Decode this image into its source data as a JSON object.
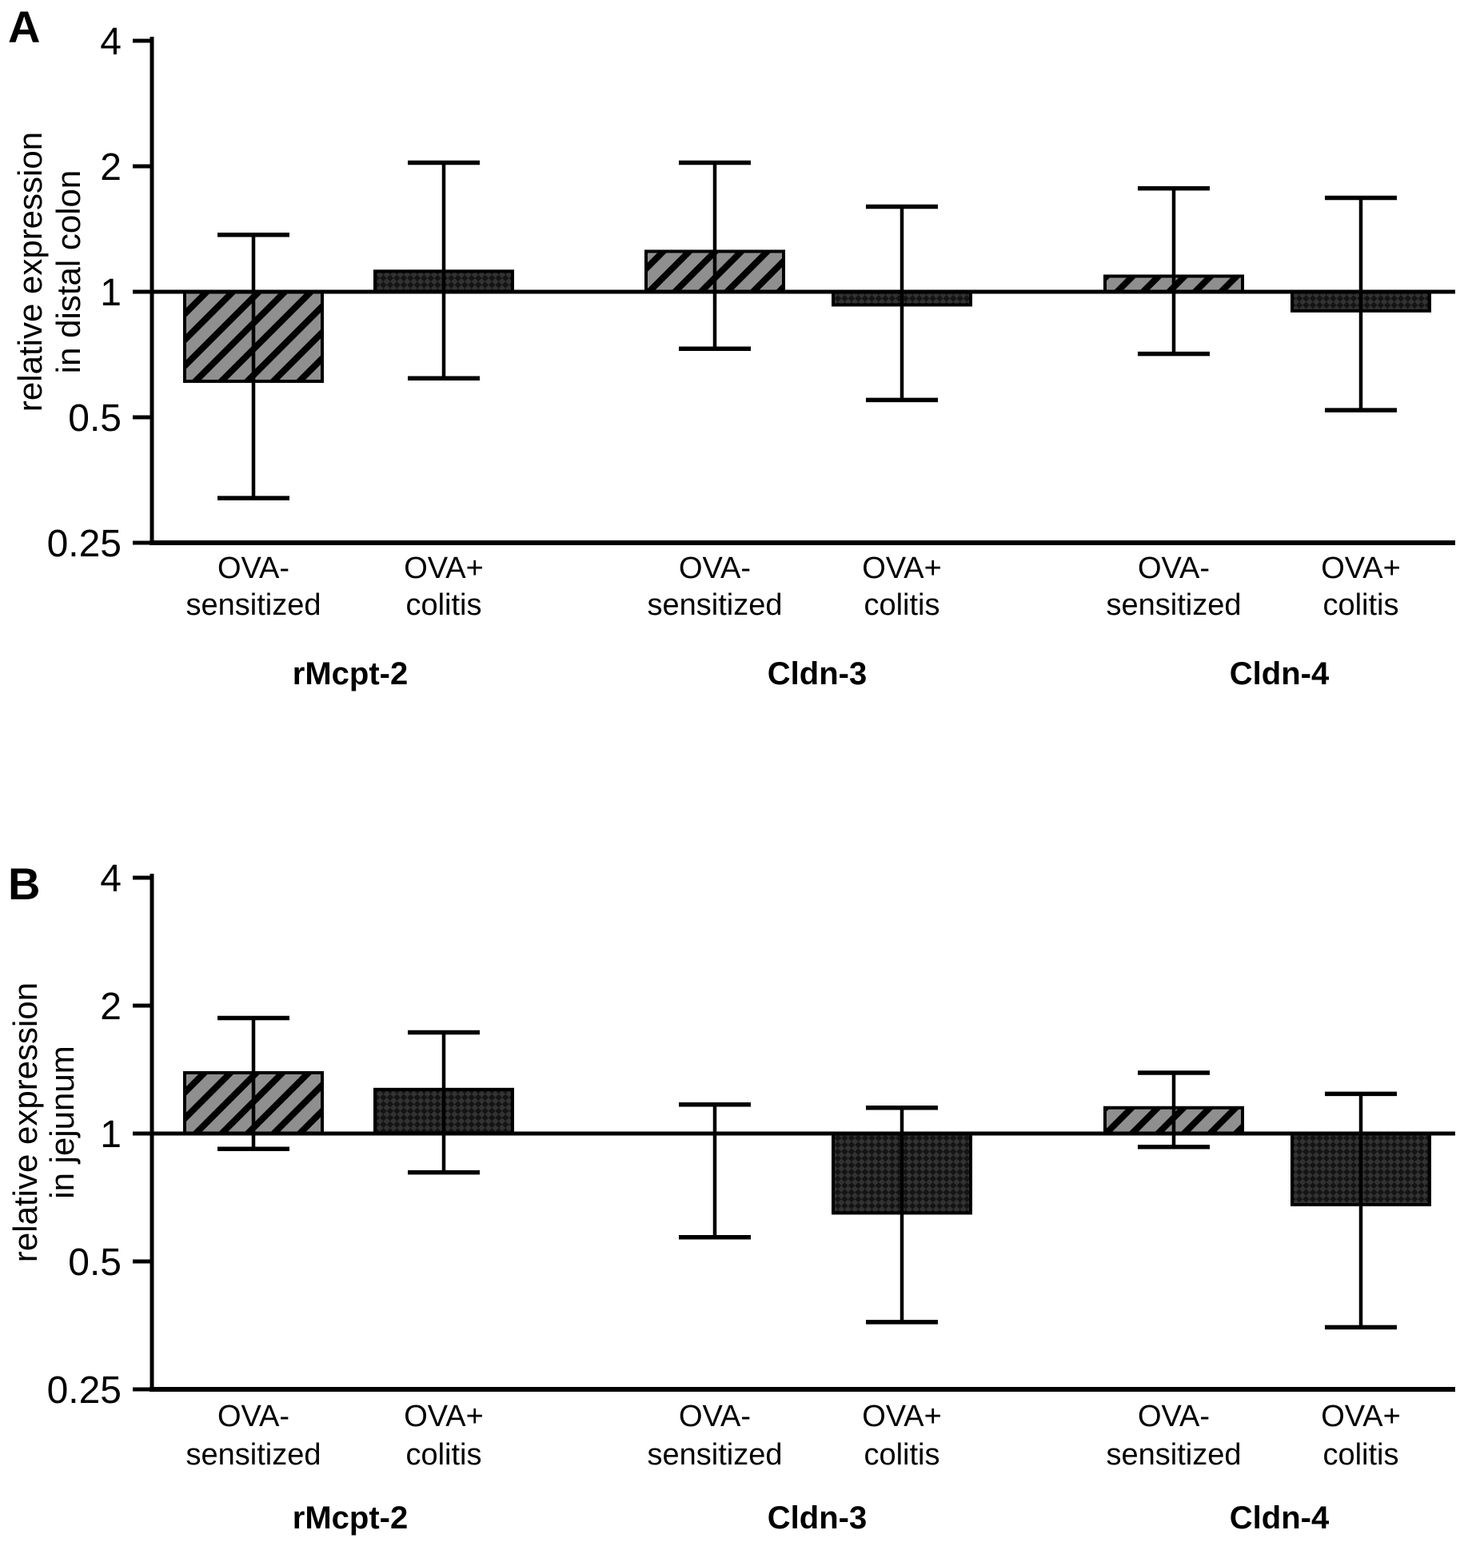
{
  "colors": {
    "stroke": "#000000",
    "hatched_fill": "#8f8f8f",
    "hatch_stripe": "#000000",
    "dark_fill": "#141414",
    "dark_weave": "#323232",
    "background": "#ffffff"
  },
  "style_key": {
    "hatched": "OVA-sensitized",
    "crosshatch": "OVA+ colitis"
  },
  "chart_data": [
    {
      "type": "bar",
      "panel_label": "A",
      "title": "",
      "xlabel": "",
      "ylabel": "relative expression in distal colon",
      "ylabel_lines": [
        "relative expression",
        "in distal colon"
      ],
      "yscale": "log2",
      "ylim": [
        0.25,
        4
      ],
      "yticks": [
        4,
        2,
        1,
        0.5,
        0.25
      ],
      "ytick_labels": [
        "4",
        "2",
        "1",
        "0.5",
        "0.25"
      ],
      "baseline": 1,
      "grid": false,
      "legend_position": "none",
      "group_labels": [
        "rMcpt-2",
        "Cldn-3",
        "Cldn-4"
      ],
      "bars": [
        {
          "group": "rMcpt-2",
          "condition_lines": [
            "OVA-",
            "sensitized"
          ],
          "style": "hatched",
          "value": 0.61,
          "err_low": 0.32,
          "err_high": 1.37
        },
        {
          "group": "rMcpt-2",
          "condition_lines": [
            "OVA+",
            "colitis"
          ],
          "style": "crosshatch",
          "value": 1.12,
          "err_low": 0.62,
          "err_high": 2.04
        },
        {
          "group": "Cldn-3",
          "condition_lines": [
            "OVA-",
            "sensitized"
          ],
          "style": "hatched",
          "value": 1.25,
          "err_low": 0.73,
          "err_high": 2.04
        },
        {
          "group": "Cldn-3",
          "condition_lines": [
            "OVA+",
            "colitis"
          ],
          "style": "crosshatch",
          "value": 0.93,
          "err_low": 0.55,
          "err_high": 1.6
        },
        {
          "group": "Cldn-4",
          "condition_lines": [
            "OVA-",
            "sensitized"
          ],
          "style": "hatched",
          "value": 1.09,
          "err_low": 0.71,
          "err_high": 1.77
        },
        {
          "group": "Cldn-4",
          "condition_lines": [
            "OVA+",
            "colitis"
          ],
          "style": "crosshatch",
          "value": 0.9,
          "err_low": 0.52,
          "err_high": 1.68
        }
      ]
    },
    {
      "type": "bar",
      "panel_label": "B",
      "title": "",
      "xlabel": "",
      "ylabel": "relative expression in jejunum",
      "ylabel_lines": [
        "relative expression",
        "in jejunum"
      ],
      "yscale": "log2",
      "ylim": [
        0.25,
        4
      ],
      "yticks": [
        4,
        2,
        1,
        0.5,
        0.25
      ],
      "ytick_labels": [
        "4",
        "2",
        "1",
        "0.5",
        "0.25"
      ],
      "baseline": 1,
      "grid": false,
      "legend_position": "none",
      "group_labels": [
        "rMcpt-2",
        "Cldn-3",
        "Cldn-4"
      ],
      "bars": [
        {
          "group": "rMcpt-2",
          "condition_lines": [
            "OVA-",
            "sensitized"
          ],
          "style": "hatched",
          "value": 1.39,
          "err_low": 0.92,
          "err_high": 1.87
        },
        {
          "group": "rMcpt-2",
          "condition_lines": [
            "OVA+",
            "colitis"
          ],
          "style": "crosshatch",
          "value": 1.27,
          "err_low": 0.81,
          "err_high": 1.73
        },
        {
          "group": "Cldn-3",
          "condition_lines": [
            "OVA-",
            "sensitized"
          ],
          "style": "hatched",
          "value": 1.0,
          "err_low": 0.57,
          "err_high": 1.17
        },
        {
          "group": "Cldn-3",
          "condition_lines": [
            "OVA+",
            "colitis"
          ],
          "style": "crosshatch",
          "value": 0.65,
          "err_low": 0.36,
          "err_high": 1.15
        },
        {
          "group": "Cldn-4",
          "condition_lines": [
            "OVA-",
            "sensitized"
          ],
          "style": "hatched",
          "value": 1.15,
          "err_low": 0.93,
          "err_high": 1.39
        },
        {
          "group": "Cldn-4",
          "condition_lines": [
            "OVA+",
            "colitis"
          ],
          "style": "crosshatch",
          "value": 0.68,
          "err_low": 0.35,
          "err_high": 1.24
        }
      ]
    }
  ]
}
